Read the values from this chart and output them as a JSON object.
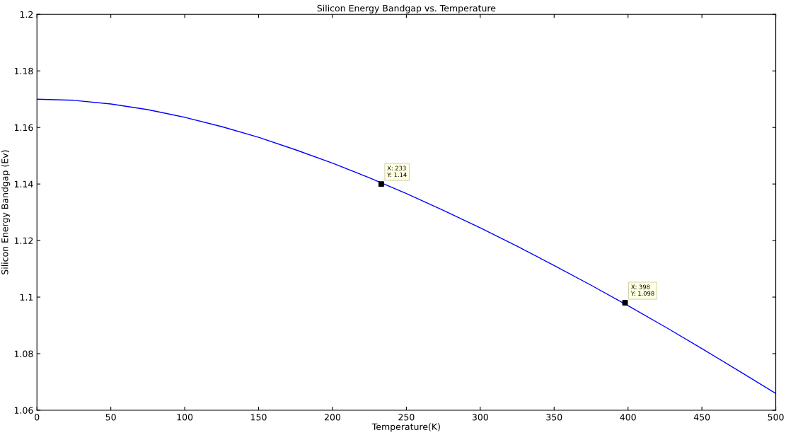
{
  "chart_data": {
    "type": "line",
    "title": "Silicon Energy Bandgap vs. Temperature",
    "xlabel": "Temperature(K)",
    "ylabel": "Silicon Energy Bandgap (Ev)",
    "x": [
      0,
      25,
      50,
      75,
      100,
      125,
      150,
      175,
      200,
      225,
      250,
      275,
      300,
      325,
      350,
      375,
      400,
      425,
      450,
      475,
      500
    ],
    "series": [
      {
        "color": "#0000ff",
        "values": [
          1.17,
          1.1696,
          1.1683,
          1.1663,
          1.1636,
          1.1603,
          1.1565,
          1.1521,
          1.1474,
          1.1422,
          1.1366,
          1.1307,
          1.1245,
          1.118,
          1.1112,
          1.1042,
          1.097,
          1.0895,
          1.0818,
          1.0739,
          1.0659
        ]
      },
      {
        "type": "scatter",
        "color": "#000000",
        "marker": "square",
        "x": [
          233,
          398
        ],
        "values": [
          1.14,
          1.098
        ]
      }
    ],
    "annotations": [
      {
        "text": "X: 233\nY: 1.14",
        "x": 233,
        "y": 1.14
      },
      {
        "text": "X: 398\nY: 1.098",
        "x": 398,
        "y": 1.098
      }
    ],
    "xlim": [
      0,
      500
    ],
    "xticks": [
      0,
      50,
      100,
      150,
      200,
      250,
      300,
      350,
      400,
      450,
      500
    ],
    "ylim": [
      1.06,
      1.2
    ],
    "yticks": [
      1.06,
      1.08,
      1.1,
      1.12,
      1.14,
      1.16,
      1.18,
      1.2
    ],
    "grid": false,
    "legend": false
  }
}
